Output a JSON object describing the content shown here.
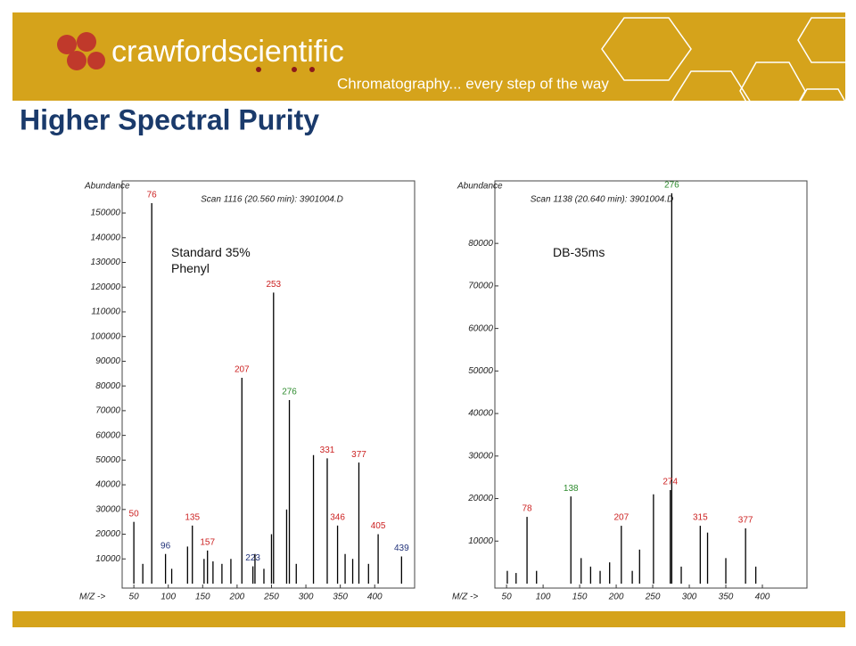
{
  "header": {
    "brand": "crawfordscientific",
    "tagline": "Chromatography... every step of the way"
  },
  "title": "Higher Spectral Purity",
  "chart_data": [
    {
      "type": "spectrum",
      "title": "Scan 1116 (20.560 min): 3901004.D",
      "y_label": "Abundance",
      "x_label": "M/Z ->",
      "note": "Standard 35%\nPhenyl",
      "xlim": [
        33,
        458
      ],
      "ylim": [
        0,
        163000
      ],
      "xticks": [
        50,
        100,
        150,
        200,
        250,
        300,
        350,
        400
      ],
      "yticks": [
        10000,
        20000,
        30000,
        40000,
        50000,
        60000,
        70000,
        80000,
        90000,
        100000,
        110000,
        120000,
        130000,
        140000,
        150000
      ],
      "series": [
        {
          "color": "#000000",
          "show_labels": true,
          "x": [
            76,
            50,
            96,
            135,
            157,
            207,
            223,
            253,
            276,
            331,
            346,
            377,
            405,
            439
          ],
          "values": [
            154000,
            25000,
            12000,
            23500,
            13400,
            83300,
            7000,
            117800,
            74300,
            50700,
            23500,
            49000,
            20000,
            11000
          ],
          "label_colors": [
            "#cc2222",
            "#cc2222",
            "#22337a",
            "#cc2222",
            "#cc2222",
            "#cc2222",
            "#22337a",
            "#cc2222",
            "#2e8b2e",
            "#cc2222",
            "#cc2222",
            "#cc2222",
            "#cc2222",
            "#22337a"
          ]
        },
        {
          "color": "#000000",
          "show_labels": false,
          "x": [
            63,
            105,
            128,
            152,
            165,
            178,
            191,
            226,
            239,
            250,
            272,
            286,
            311,
            357,
            368,
            391
          ],
          "values": [
            8000,
            6000,
            15000,
            10000,
            9000,
            8000,
            10000,
            12000,
            6000,
            20000,
            30000,
            8000,
            52000,
            12000,
            10000,
            8000
          ]
        }
      ]
    },
    {
      "type": "spectrum",
      "title": "Scan 1138 (20.640 min): 3901004.D",
      "y_label": "Abundance",
      "x_label": "M/Z ->",
      "note": "DB-35ms",
      "xlim": [
        34,
        461
      ],
      "ylim": [
        0,
        94700
      ],
      "xticks": [
        50,
        100,
        150,
        200,
        250,
        300,
        350,
        400
      ],
      "yticks": [
        10000,
        20000,
        30000,
        40000,
        50000,
        60000,
        70000,
        80000
      ],
      "series": [
        {
          "color": "#000000",
          "show_labels": true,
          "x": [
            276,
            78,
            138,
            207,
            274,
            315,
            377
          ],
          "values": [
            91800,
            15700,
            20500,
            13600,
            22000,
            13600,
            13000
          ],
          "label_colors": [
            "#2e8b2e",
            "#cc2222",
            "#2e8b2e",
            "#cc2222",
            "#cc2222",
            "#cc2222",
            "#cc2222"
          ]
        },
        {
          "color": "#000000",
          "show_labels": false,
          "x": [
            51,
            63,
            91,
            152,
            165,
            178,
            191,
            222,
            232,
            251,
            289,
            325,
            350,
            391
          ],
          "values": [
            3000,
            2500,
            3000,
            6000,
            4000,
            3000,
            5000,
            3000,
            8000,
            21000,
            4000,
            12000,
            6000,
            4000
          ]
        }
      ]
    }
  ]
}
